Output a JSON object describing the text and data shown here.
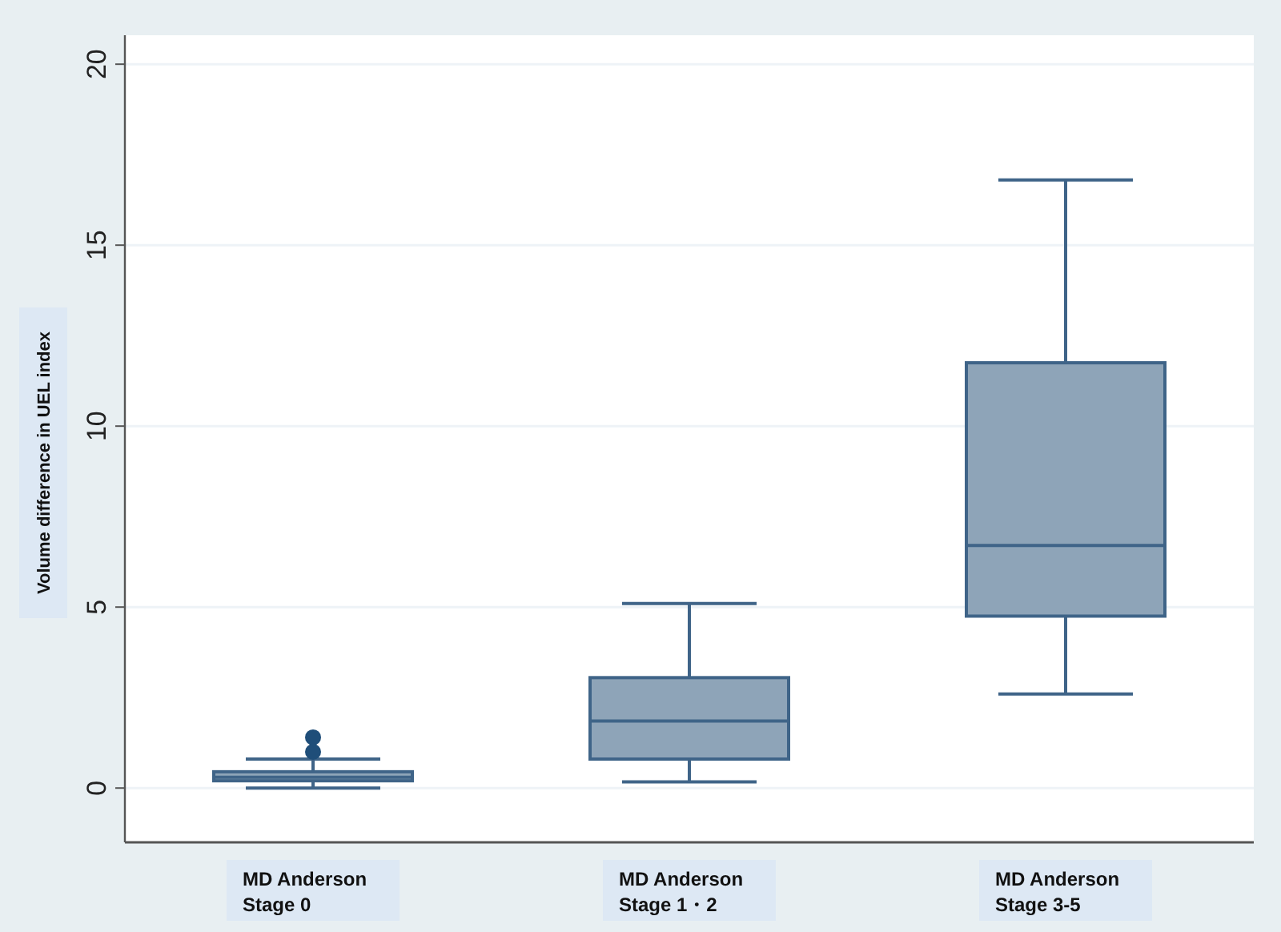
{
  "chart_data": {
    "type": "box",
    "ylabel": "Volume difference in UEL index",
    "categories": [
      "MD Anderson\nStage 0",
      "MD Anderson\nStage 1・2",
      "MD Anderson\nStage 3-5"
    ],
    "boxes": [
      {
        "low": 0,
        "q1": 0.2,
        "median": 0.3,
        "q3": 0.45,
        "high": 0.8,
        "outliers": [
          1.0,
          1.4
        ]
      },
      {
        "low": 0.17,
        "q1": 0.8,
        "median": 1.85,
        "q3": 3.05,
        "high": 5.1
      },
      {
        "low": 2.6,
        "q1": 4.75,
        "median": 6.7,
        "q3": 11.75,
        "high": 16.8
      }
    ],
    "color": "#8ea4b8",
    "ylim": [
      -1.5,
      20.8
    ],
    "yticks": [
      0,
      5,
      10,
      15,
      20
    ],
    "grid": "y"
  }
}
